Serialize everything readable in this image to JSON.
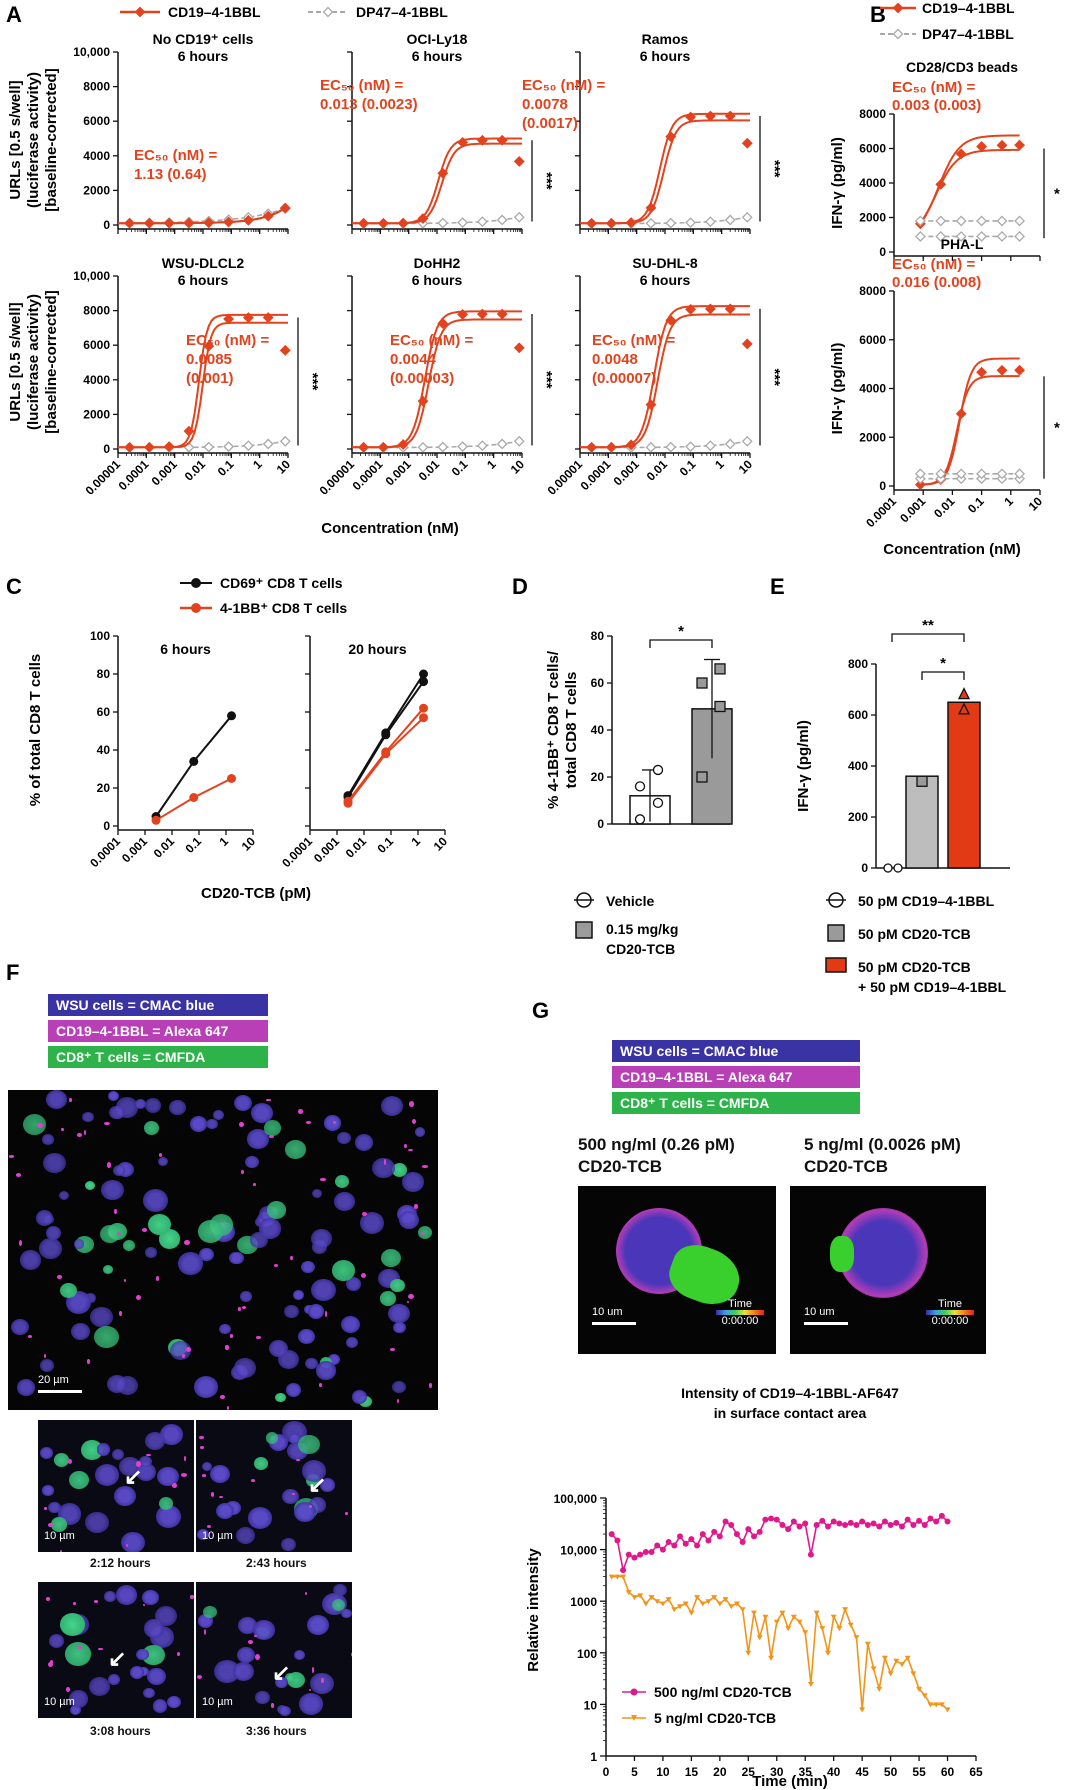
{
  "colors": {
    "cd19": "#e2431e",
    "dp47": "#a9a9a9",
    "black": "#111111",
    "cmac": "#3a33a3",
    "alexa": "#b83fb5",
    "cmfda": "#2db34a",
    "pink": "#e0188b",
    "orange": "#f29418"
  },
  "panel_letters": [
    "A",
    "B",
    "C",
    "D",
    "E",
    "F",
    "G"
  ],
  "chart_data": [
    {
      "id": "A",
      "type": "line",
      "legend": [
        "CD19–4-1BBL",
        "DP47–4-1BBL"
      ],
      "ylabel_lines": [
        "URLs [0.5 s/well]",
        "(luciferase activity)",
        "[baseline-corrected]"
      ],
      "xlabel": "Concentration (nM)",
      "xticks": [
        "0.00001",
        "0.0001",
        "0.001",
        "0.01",
        "0.1",
        "1",
        "10"
      ],
      "yticks": [
        "0",
        "2000",
        "4000",
        "6000",
        "8000",
        "10,000"
      ],
      "ylim": [
        0,
        10000
      ],
      "xscale": "log",
      "subplots": [
        {
          "title": [
            "No CD19⁺ cells",
            "6 hours"
          ],
          "ec50": [
            "EC₅₀ (nM) =",
            "1.13 (0.64)"
          ],
          "sig": "",
          "top": 8000,
          "ec": 1.1
        },
        {
          "title": [
            "OCI-Ly18",
            "6 hours"
          ],
          "ec50": [
            "EC₅₀ (nM) =",
            "0.013 (0.0023)"
          ],
          "sig": "***",
          "top": 4900,
          "ec": 0.013
        },
        {
          "title": [
            "Ramos",
            "6 hours"
          ],
          "ec50": [
            "EC₅₀ (nM) =",
            "0.0078",
            "(0.0017)"
          ],
          "sig": "***",
          "top": 6300,
          "ec": 0.0078
        },
        {
          "title": [
            "WSU-DLCL2",
            "6 hours"
          ],
          "ec50": [
            "EC₅₀ (nM) =",
            "0.0085",
            "(0.001)"
          ],
          "sig": "***",
          "top": 7600,
          "ec": 0.0085
        },
        {
          "title": [
            "DoHH2",
            "6 hours"
          ],
          "ec50": [
            "EC₅₀ (nM) =",
            "0.0044",
            "(0.00003)"
          ],
          "sig": "***",
          "top": 7800,
          "ec": 0.0044
        },
        {
          "title": [
            "SU-DHL-8",
            "6 hours"
          ],
          "ec50": [
            "EC₅₀ (nM) =",
            "0.0048",
            "(0.00007)"
          ],
          "sig": "***",
          "top": 8100,
          "ec": 0.0048
        }
      ]
    },
    {
      "id": "B",
      "type": "line",
      "legend": [
        "CD19–4-1BBL",
        "DP47–4-1BBL"
      ],
      "ylabel": "IFN-γ (pg/ml)",
      "xlabel": "Concentration (nM)",
      "xticks": [
        "0.0001",
        "0.001",
        "0.01",
        "0.1",
        "1",
        "10"
      ],
      "yticks": [
        "0",
        "2000",
        "4000",
        "6000",
        "8000"
      ],
      "ylim": [
        0,
        8000
      ],
      "xscale": "log",
      "subplots": [
        {
          "title": [
            "CD28/CD3 beads"
          ],
          "ec50": [
            "EC₅₀ (nM) =",
            "0.003 (0.003)"
          ],
          "sig": "*",
          "top": 5600,
          "ec": 0.003
        },
        {
          "title": [
            "PHA-L"
          ],
          "ec50": [
            "EC₅₀ (nM) =",
            "0.016 (0.008)"
          ],
          "sig": "*",
          "top": 4800,
          "ec": 0.016
        }
      ]
    },
    {
      "id": "C",
      "type": "line",
      "legend": [
        "CD69⁺ CD8 T cells",
        "4-1BB⁺ CD8 T cells"
      ],
      "ylabel": "% of total CD8 T cells",
      "xlabel": "CD20-TCB (pM)",
      "xticks": [
        "0.0001",
        "0.001",
        "0.01",
        "0.1",
        "1",
        "10"
      ],
      "yticks": [
        "0",
        "20",
        "40",
        "60",
        "80",
        "100"
      ],
      "ylim": [
        0,
        100
      ],
      "xscale": "log",
      "subplots": [
        {
          "title": "6 hours",
          "series": [
            {
              "name": "CD69⁺ CD8 T cells",
              "x": [
                0.00256,
                0.064,
                1.6
              ],
              "y": [
                5,
                34,
                58
              ]
            },
            {
              "name": "4-1BB⁺ CD8 T cells",
              "x": [
                0.00256,
                0.064,
                1.6
              ],
              "y": [
                3,
                15,
                25
              ]
            }
          ]
        },
        {
          "title": "20 hours",
          "series": [
            {
              "name": "CD69⁺ CD8 T cells",
              "x": [
                0.00256,
                0.064,
                1.6,
                0.00256,
                0.064,
                1.6
              ],
              "y": [
                16,
                49,
                80,
                15,
                48,
                76
              ]
            },
            {
              "name": "4-1BB⁺ CD8 T cells",
              "x": [
                0.00256,
                0.064,
                1.6,
                0.00256,
                0.064,
                1.6
              ],
              "y": [
                13,
                39,
                62,
                12,
                38,
                57
              ]
            }
          ]
        }
      ]
    },
    {
      "id": "D",
      "type": "bar",
      "ylabel_lines": [
        "% 4-1BB⁺ CD8 T cells/",
        "total CD8 T cells"
      ],
      "yticks": [
        "0",
        "20",
        "40",
        "60",
        "80"
      ],
      "ylim": [
        0,
        80
      ],
      "categories": [
        "Vehicle",
        "0.15 mg/kg CD20-TCB"
      ],
      "legend": [
        "Vehicle",
        "0.15 mg/kg",
        "CD20-TCB"
      ],
      "values": [
        12,
        49
      ],
      "errors": [
        11,
        21
      ],
      "points": [
        [
          2,
          9,
          16,
          23
        ],
        [
          20,
          50,
          60,
          66
        ]
      ],
      "sig": "*"
    },
    {
      "id": "E",
      "type": "bar",
      "ylabel": "IFN-γ (pg/ml)",
      "yticks": [
        "0",
        "200",
        "400",
        "600",
        "800"
      ],
      "ylim": [
        0,
        800
      ],
      "categories": [
        "50 pM CD19–4-1BBL",
        "50 pM CD20-TCB",
        "50 pM CD20-TCB + 50 pM CD19–4-1BBL"
      ],
      "legend": [
        "50 pM CD19–4-1BBL",
        "50 pM CD20-TCB",
        "50 pM CD20-TCB",
        "+ 50 pM CD19–4-1BBL"
      ],
      "values": [
        0,
        360,
        650
      ],
      "points": [
        [
          0,
          0
        ],
        [
          340,
          380
        ],
        [
          620,
          680
        ]
      ],
      "sig": [
        "**",
        "*"
      ]
    },
    {
      "id": "G",
      "type": "line",
      "title": [
        "Intensity of CD19–4-1BBL-AF647",
        "in surface contact area"
      ],
      "ylabel": "Relative intensity",
      "xlabel": "Time (min)",
      "yscale": "log",
      "yticks": [
        "1",
        "10",
        "100",
        "1000",
        "10,000",
        "100,000"
      ],
      "xticks": [
        "0",
        "5",
        "10",
        "15",
        "20",
        "25",
        "30",
        "35",
        "40",
        "45",
        "50",
        "55",
        "60",
        "65"
      ],
      "xlim": [
        0,
        65
      ],
      "ylim": [
        1,
        100000
      ],
      "series": [
        {
          "name": "500 ng/ml CD20-TCB",
          "x": [
            1,
            2,
            3,
            4,
            5,
            6,
            7,
            8,
            9,
            10,
            11,
            12,
            13,
            14,
            15,
            16,
            17,
            18,
            19,
            20,
            21,
            22,
            23,
            24,
            25,
            26,
            27,
            28,
            29,
            30,
            31,
            32,
            33,
            34,
            35,
            36,
            37,
            38,
            39,
            40,
            41,
            42,
            43,
            44,
            45,
            46,
            47,
            48,
            49,
            50,
            51,
            52,
            53,
            54,
            55,
            56,
            57,
            58,
            59,
            60
          ],
          "y": [
            20000,
            15000,
            4000,
            8000,
            7000,
            8000,
            9000,
            9000,
            12000,
            10000,
            14000,
            12000,
            18000,
            13000,
            16000,
            12000,
            20000,
            15000,
            22000,
            18000,
            35000,
            30000,
            20000,
            14000,
            25000,
            18000,
            22000,
            38000,
            40000,
            38000,
            30000,
            25000,
            35000,
            28000,
            32000,
            8000,
            30000,
            36000,
            28000,
            35000,
            32000,
            30000,
            33000,
            30000,
            35000,
            30000,
            32000,
            28000,
            35000,
            30000,
            33000,
            28000,
            38000,
            30000,
            36000,
            30000,
            40000,
            35000,
            45000,
            35000
          ]
        },
        {
          "name": "5 ng/ml CD20-TCB",
          "x": [
            1,
            2,
            3,
            4,
            5,
            6,
            7,
            8,
            9,
            10,
            11,
            12,
            13,
            14,
            15,
            16,
            17,
            18,
            19,
            20,
            21,
            22,
            23,
            24,
            25,
            26,
            27,
            28,
            29,
            30,
            31,
            32,
            33,
            34,
            35,
            36,
            37,
            38,
            39,
            40,
            41,
            42,
            43,
            44,
            45,
            46,
            47,
            48,
            49,
            50,
            51,
            52,
            53,
            54,
            55,
            56,
            57,
            58,
            59,
            60
          ],
          "y": [
            3000,
            3000,
            3000,
            1500,
            1200,
            1300,
            900,
            1200,
            1000,
            900,
            1100,
            700,
            800,
            900,
            600,
            1200,
            900,
            1000,
            1200,
            900,
            1100,
            800,
            900,
            700,
            100,
            600,
            200,
            500,
            80,
            400,
            600,
            300,
            500,
            400,
            250,
            25,
            600,
            300,
            100,
            500,
            300,
            700,
            350,
            200,
            8,
            150,
            50,
            20,
            80,
            40,
            70,
            60,
            80,
            40,
            20,
            15,
            10,
            10,
            10,
            8
          ]
        }
      ]
    }
  ],
  "panel_F": {
    "labels": [
      "WSU cells = CMAC blue",
      "CD19–4-1BBL = Alexa  647",
      "CD8⁺ T cells = CMFDA"
    ],
    "scale_main": "20 µm",
    "scale_small": "10 µm",
    "time_captions": [
      "2:12 hours",
      "2:43 hours",
      "3:08 hours",
      "3:36 hours"
    ]
  },
  "panel_G": {
    "labels": [
      "WSU cells = CMAC blue",
      "CD19–4-1BBL = Alexa  647",
      "CD8⁺ T cells = CMFDA"
    ],
    "image_titles": [
      [
        "500 ng/ml (0.26 pM)",
        "CD20-TCB"
      ],
      [
        "5 ng/ml (0.0026 pM)",
        "CD20-TCB"
      ]
    ],
    "scale": "10 um",
    "time_label": "Time",
    "time_value": "0:00:00"
  }
}
